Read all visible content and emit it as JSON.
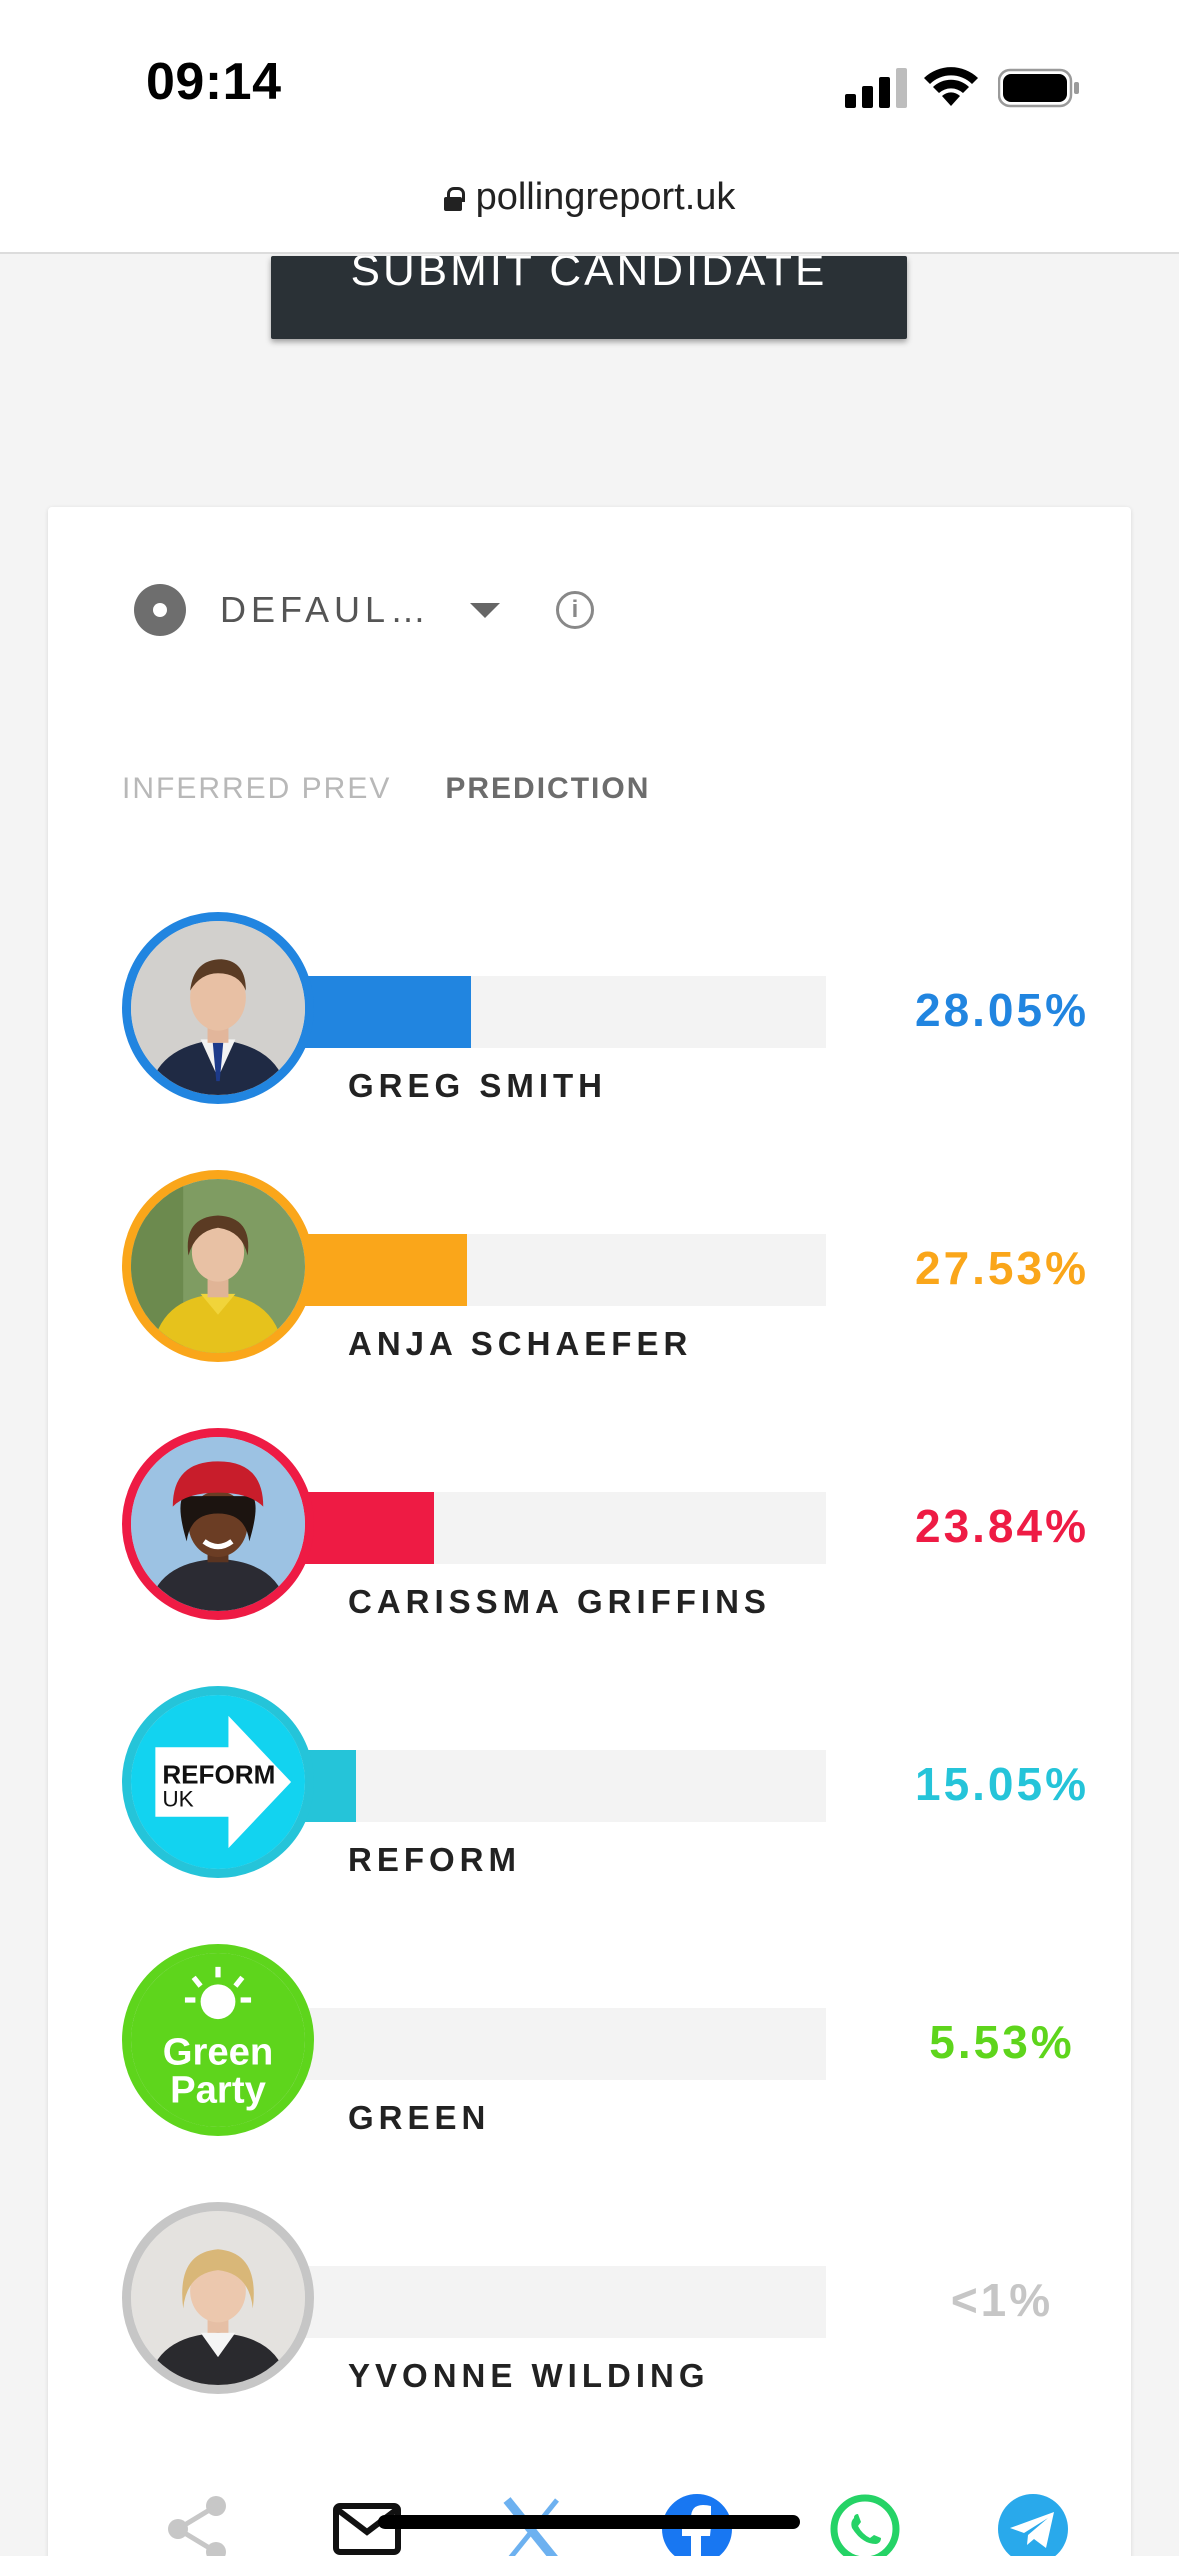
{
  "status_bar": {
    "time": "09:14"
  },
  "browser": {
    "url": "pollingreport.uk"
  },
  "submit": {
    "label": "SUBMIT CANDIDATE"
  },
  "scenario": {
    "selected": "DEFAUL…"
  },
  "tabs": [
    {
      "label": "INFERRED PREV",
      "active": false
    },
    {
      "label": "PREDICTION",
      "active": true
    }
  ],
  "candidates": [
    {
      "name": "GREG SMITH",
      "percent_label": "28.05%",
      "share": 28.05,
      "color": "#2185e0"
    },
    {
      "name": "ANJA SCHAEFER",
      "percent_label": "27.53%",
      "share": 27.53,
      "color": "#faa61a"
    },
    {
      "name": "CARISSMA GRIFFINS",
      "percent_label": "23.84%",
      "share": 23.84,
      "color": "#ee1b44"
    },
    {
      "name": "REFORM",
      "percent_label": "15.05%",
      "share": 15.05,
      "color": "#25c4d9"
    },
    {
      "name": "GREEN",
      "percent_label": "5.53%",
      "share": 5.53,
      "color": "#5ed51c"
    },
    {
      "name": "YVONNE WILDING",
      "percent_label": "<1%",
      "share": 0.5,
      "color": "#c6c6c6"
    }
  ],
  "logos": {
    "reform_line1": "REFORM",
    "reform_line2": "UK",
    "green_line1": "Green",
    "green_line2": "Party"
  },
  "share_icons": [
    "share-icon",
    "email-icon",
    "x-icon",
    "facebook-icon",
    "whatsapp-icon",
    "telegram-icon"
  ]
}
